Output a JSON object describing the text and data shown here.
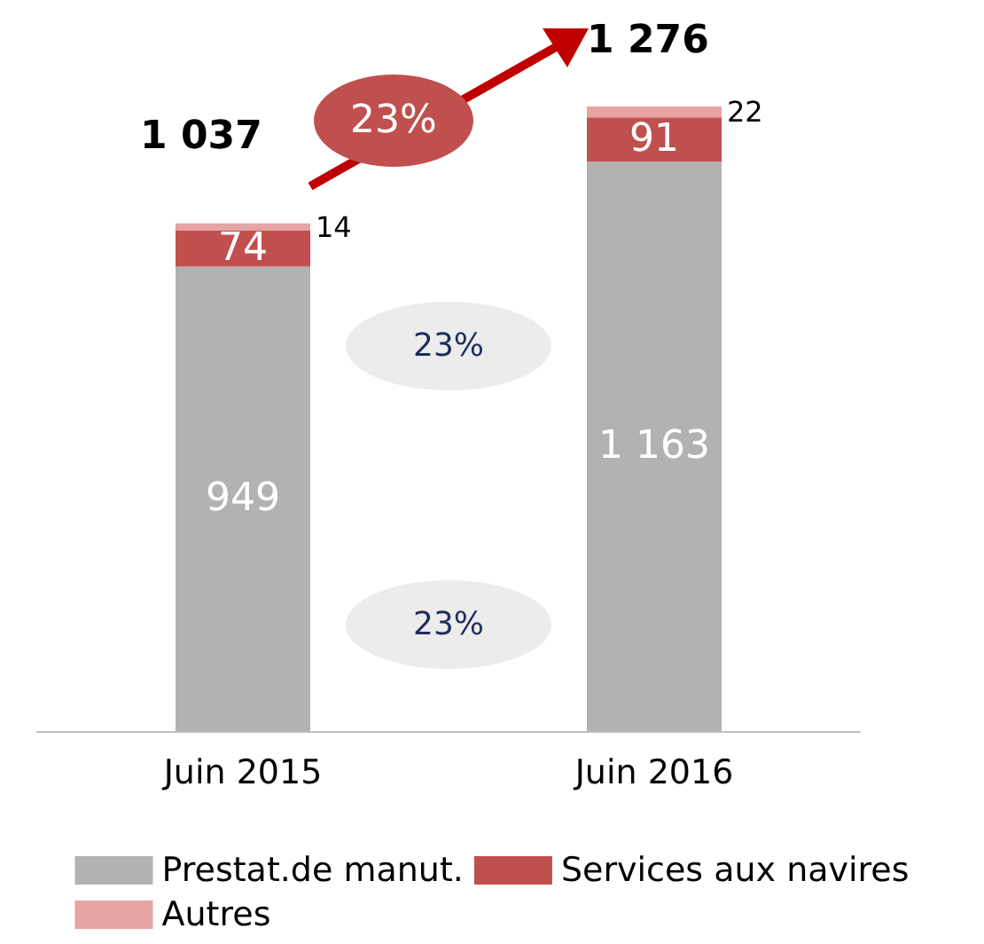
{
  "chart_data": {
    "type": "bar",
    "stacked": true,
    "categories": [
      "Juin 2015",
      "Juin 2016"
    ],
    "series": [
      {
        "name": "Prestat.de manut.",
        "color": "#b2b2b2",
        "values": [
          949,
          1163
        ],
        "value_labels": [
          "949",
          "1 163"
        ]
      },
      {
        "name": "Services aux navires",
        "color": "#c0504d",
        "values": [
          74,
          91
        ],
        "value_labels": [
          "74",
          "91"
        ]
      },
      {
        "name": "Autres",
        "color": "#e6a4a4",
        "values": [
          14,
          22
        ],
        "value_labels": [
          "14",
          "22"
        ]
      }
    ],
    "totals": [
      "1 037",
      "1 276"
    ],
    "annotations": [
      "23%",
      "23%",
      "23%"
    ],
    "legend": "bottom"
  }
}
